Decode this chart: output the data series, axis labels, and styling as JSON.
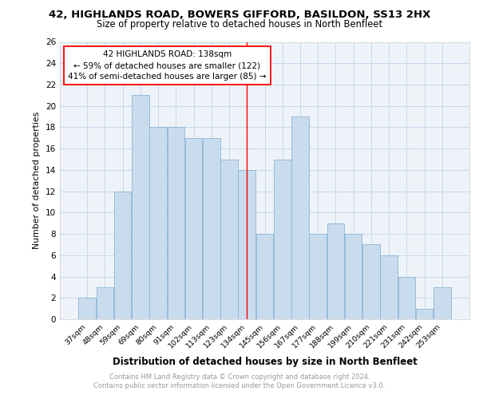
{
  "title": "42, HIGHLANDS ROAD, BOWERS GIFFORD, BASILDON, SS13 2HX",
  "subtitle": "Size of property relative to detached houses in North Benfleet",
  "xlabel": "Distribution of detached houses by size in North Benfleet",
  "ylabel": "Number of detached properties",
  "categories": [
    "37sqm",
    "48sqm",
    "59sqm",
    "69sqm",
    "80sqm",
    "91sqm",
    "102sqm",
    "113sqm",
    "123sqm",
    "134sqm",
    "145sqm",
    "156sqm",
    "167sqm",
    "177sqm",
    "188sqm",
    "199sqm",
    "210sqm",
    "221sqm",
    "231sqm",
    "242sqm",
    "253sqm"
  ],
  "values": [
    2,
    3,
    12,
    21,
    18,
    18,
    17,
    17,
    15,
    14,
    8,
    15,
    19,
    8,
    9,
    8,
    7,
    6,
    4,
    1,
    3
  ],
  "bar_color": "#c9dcee",
  "bar_edge_color": "#8ab4d4",
  "vline_x_index": 9,
  "vline_color": "red",
  "annotation_line1": "42 HIGHLANDS ROAD: 138sqm",
  "annotation_line2": "← 59% of detached houses are smaller (122)",
  "annotation_line3": "41% of semi-detached houses are larger (85) →",
  "annotation_box_color": "white",
  "annotation_box_edgecolor": "red",
  "ylim": [
    0,
    26
  ],
  "yticks": [
    0,
    2,
    4,
    6,
    8,
    10,
    12,
    14,
    16,
    18,
    20,
    22,
    24,
    26
  ],
  "footer": "Contains HM Land Registry data © Crown copyright and database right 2024.\nContains public sector information licensed under the Open Government Licence v3.0.",
  "grid_color": "#c5d8ec",
  "background_color": "#eef3f9"
}
